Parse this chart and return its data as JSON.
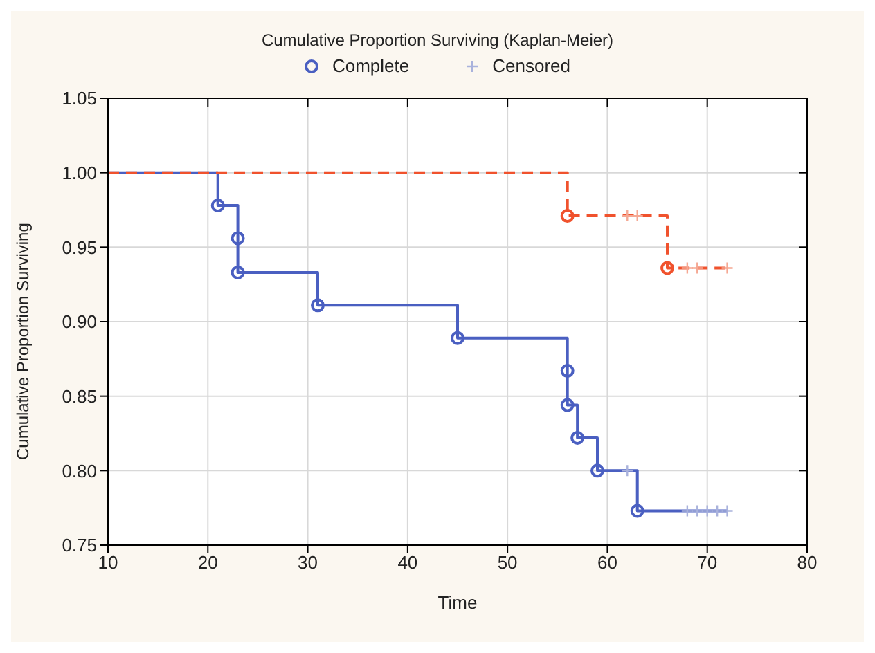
{
  "chart_data": {
    "type": "step",
    "title": "Cumulative Proportion Surviving (Kaplan-Meier)",
    "xlabel": "Time",
    "ylabel": "Cumulative Proportion Surviving",
    "xlim": [
      10,
      80
    ],
    "xticks": [
      10,
      20,
      30,
      40,
      50,
      60,
      70,
      80
    ],
    "ylim": [
      0.75,
      1.05
    ],
    "yticks": [
      1.05,
      {
        "value": 1,
        "label": "1.00"
      },
      0.95,
      {
        "value": 0.9,
        "label": "0.90"
      },
      0.85,
      {
        "value": 0.8,
        "label": "0.80"
      },
      0.75
    ],
    "grid": true,
    "legend": "top",
    "series": [
      {
        "type": "step",
        "color": "#4a5fc1",
        "line_style": "solid",
        "marker": "none",
        "x": [
          10,
          21,
          23,
          23,
          31,
          45,
          56,
          56,
          57,
          59,
          63,
          72
        ],
        "values": [
          1,
          0.978,
          0.956,
          0.933,
          0.911,
          0.889,
          0.867,
          0.844,
          0.822,
          0.8,
          0.773,
          0.773
        ]
      },
      {
        "type": "step",
        "color": "#f0522d",
        "line_style": "dashed",
        "marker": "none",
        "x": [
          10,
          56,
          66,
          72
        ],
        "values": [
          1,
          0.971,
          0.936,
          0.936
        ]
      },
      {
        "type": "scatter",
        "name": "Complete",
        "color": "#4a5fc1",
        "marker": "circle",
        "x": [
          21,
          23,
          23,
          31,
          45,
          56,
          56,
          57,
          59,
          63
        ],
        "values": [
          0.978,
          0.956,
          0.933,
          0.911,
          0.889,
          0.867,
          0.844,
          0.822,
          0.8,
          0.773
        ]
      },
      {
        "type": "scatter",
        "color": "#f0522d",
        "marker": "circle",
        "x": [
          56,
          66
        ],
        "values": [
          0.971,
          0.936
        ]
      },
      {
        "type": "scatter",
        "name": "Censored",
        "color": "#a9b2dc",
        "marker": "cross",
        "x": [
          62,
          68,
          69,
          70,
          71,
          72
        ],
        "values": [
          0.8,
          0.773,
          0.773,
          0.773,
          0.773,
          0.773
        ]
      },
      {
        "type": "scatter",
        "color": "#f5a893",
        "marker": "cross",
        "x": [
          62,
          63,
          68,
          69,
          72
        ],
        "values": [
          0.971,
          0.971,
          0.936,
          0.936,
          0.936
        ]
      }
    ]
  }
}
